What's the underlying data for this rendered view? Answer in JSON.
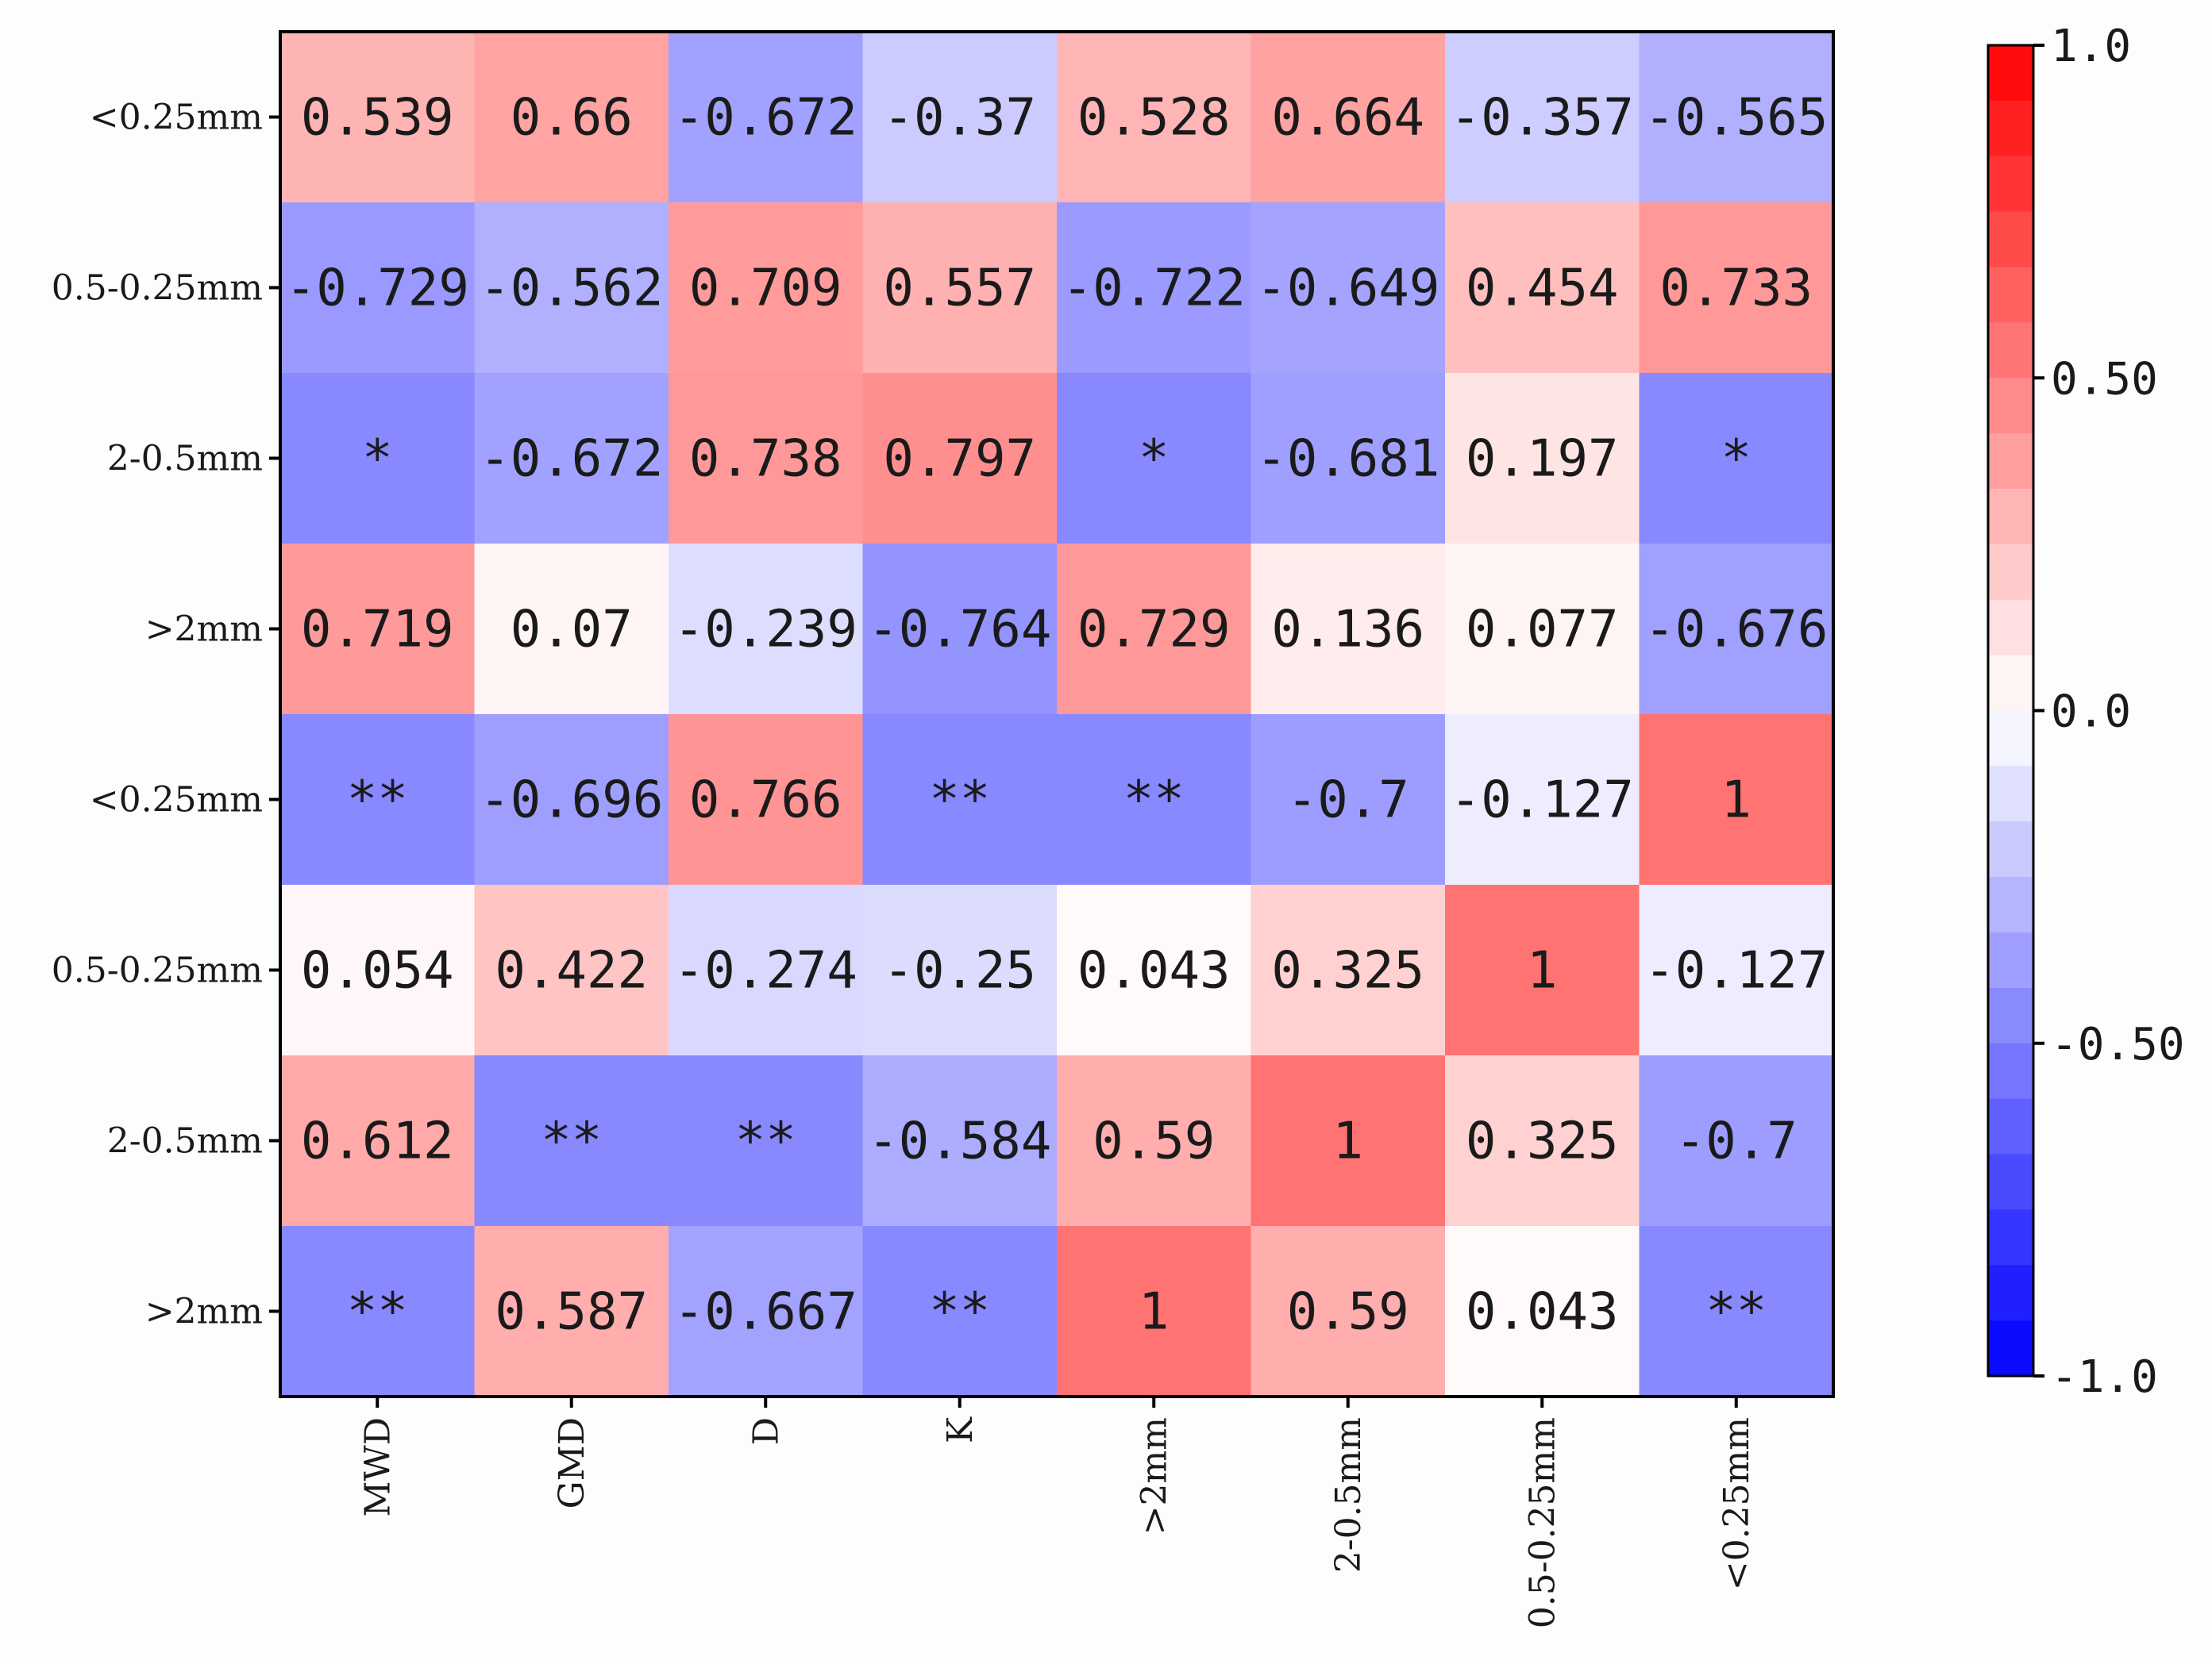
{
  "chart_data": {
    "type": "heatmap",
    "title": "",
    "xlabel": "",
    "ylabel": "",
    "x_categories": [
      "MWD",
      "GMD",
      "D",
      "K",
      ">2mm",
      "2-0.5mm",
      "0.5-0.25mm",
      "<0.25mm"
    ],
    "y_categories": [
      "<0.25mm",
      "0.5-0.25mm",
      "2-0.5mm",
      ">2mm",
      "<0.25mm",
      "0.5-0.25mm",
      "2-0.5mm",
      ">2mm"
    ],
    "values": [
      [
        0.539,
        0.66,
        -0.672,
        -0.37,
        0.528,
        0.664,
        -0.357,
        -0.565
      ],
      [
        -0.729,
        -0.562,
        0.709,
        0.557,
        -0.722,
        -0.649,
        0.454,
        0.733
      ],
      [
        -0.85,
        -0.672,
        0.738,
        0.797,
        -0.85,
        -0.681,
        0.197,
        -0.85
      ],
      [
        0.719,
        0.07,
        -0.239,
        -0.764,
        0.729,
        0.136,
        0.077,
        -0.676
      ],
      [
        -0.85,
        -0.696,
        0.766,
        -0.85,
        -0.85,
        -0.7,
        -0.127,
        1
      ],
      [
        0.054,
        0.422,
        -0.274,
        -0.25,
        0.043,
        0.325,
        1,
        -0.127
      ],
      [
        0.612,
        -0.85,
        -0.85,
        -0.584,
        0.59,
        1,
        0.325,
        -0.7
      ],
      [
        -0.85,
        0.587,
        -0.667,
        -0.85,
        1,
        0.59,
        0.043,
        -0.85
      ]
    ],
    "labels": [
      [
        "0.539",
        "0.66",
        "-0.672",
        "-0.37",
        "0.528",
        "0.664",
        "-0.357",
        "-0.565"
      ],
      [
        "-0.729",
        "-0.562",
        "0.709",
        "0.557",
        "-0.722",
        "-0.649",
        "0.454",
        "0.733"
      ],
      [
        "*",
        "-0.672",
        "0.738",
        "0.797",
        "*",
        "-0.681",
        "0.197",
        "*"
      ],
      [
        "0.719",
        "0.07",
        "-0.239",
        "-0.764",
        "0.729",
        "0.136",
        "0.077",
        "-0.676"
      ],
      [
        "**",
        "-0.696",
        "0.766",
        "**",
        "**",
        "-0.7",
        "-0.127",
        "1"
      ],
      [
        "0.054",
        "0.422",
        "-0.274",
        "-0.25",
        "0.043",
        "0.325",
        "1",
        "-0.127"
      ],
      [
        "0.612",
        "**",
        "**",
        "-0.584",
        "0.59",
        "1",
        "0.325",
        "-0.7"
      ],
      [
        "**",
        "0.587",
        "-0.667",
        "**",
        "1",
        "0.59",
        "0.043",
        "**"
      ]
    ],
    "colorbar": {
      "range": [
        -1.0,
        1.0
      ],
      "ticks": [
        1.0,
        0.5,
        0.0,
        -0.5,
        -1.0
      ],
      "tick_labels": [
        "1.0",
        "0.50",
        "0.0",
        "-0.50",
        "-1.0"
      ],
      "colormap": "bwr",
      "levels": 24
    },
    "colors": {
      "negative": "#0000ff",
      "neutral": "#ffffff",
      "positive": "#ff0000",
      "cell_alpha": 0.55
    }
  }
}
